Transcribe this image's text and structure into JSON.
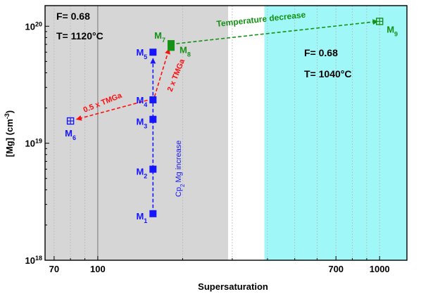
{
  "chart_data": {
    "type": "scatter",
    "xlabel": "Supersaturation",
    "ylabel": "[Mg] (cm",
    "ylabel_sup": "-3",
    "ylabel_tail": ")",
    "x_scale": "log",
    "y_scale": "log",
    "xlim": [
      65,
      1250
    ],
    "ylim": [
      1e+18,
      1.5e+20
    ],
    "x_ticks": [
      {
        "value": 70,
        "label": "70"
      },
      {
        "value": 100,
        "label": "100"
      },
      {
        "value": 700,
        "label": "700"
      },
      {
        "value": 1000,
        "label": "1000"
      }
    ],
    "y_ticks": [
      {
        "value": 1e+18,
        "base": "10",
        "exp": "18"
      },
      {
        "value": 1e+19,
        "base": "10",
        "exp": "19"
      },
      {
        "value": 1e+20,
        "base": "10",
        "exp": "20"
      }
    ],
    "regions": [
      {
        "name": "gray-region",
        "x_from": 65,
        "x_to": 290,
        "color": "#d6d6d6"
      },
      {
        "name": "cyan-region",
        "x_from": 390,
        "x_to": 1250,
        "color": "#9ff7f7"
      }
    ],
    "region_labels": [
      {
        "name": "left-region-f",
        "text": "F= 0.68"
      },
      {
        "name": "left-region-t",
        "text": "T= 1120°C"
      },
      {
        "name": "right-region-f",
        "text": "F= 0.68"
      },
      {
        "name": "right-region-t",
        "text": "T= 1040°C"
      }
    ],
    "points": [
      {
        "id": "M1",
        "base": "M",
        "sub": "1",
        "x": 157,
        "y": 2.5e+18,
        "color": "#1515ff",
        "marker": "square"
      },
      {
        "id": "M2",
        "base": "M",
        "sub": "2",
        "x": 157,
        "y": 6e+18,
        "color": "#1515ff",
        "marker": "square"
      },
      {
        "id": "M3",
        "base": "M",
        "sub": "3",
        "x": 157,
        "y": 1.6e+19,
        "color": "#1515ff",
        "marker": "square"
      },
      {
        "id": "M4",
        "base": "M",
        "sub": "4",
        "x": 157,
        "y": 2.35e+19,
        "color": "#1515ff",
        "marker": "square"
      },
      {
        "id": "M5",
        "base": "M",
        "sub": "5",
        "x": 157,
        "y": 6e+19,
        "color": "#1515ff",
        "marker": "square"
      },
      {
        "id": "M6",
        "base": "M",
        "sub": "6",
        "x": 80,
        "y": 1.55e+19,
        "color": "#1515ff",
        "marker": "square-cross"
      },
      {
        "id": "M7",
        "base": "M",
        "sub": "7",
        "x": 182,
        "y": 7.1e+19,
        "color": "#159115",
        "marker": "square"
      },
      {
        "id": "M8",
        "base": "M",
        "sub": "8",
        "x": 182,
        "y": 6.6e+19,
        "color": "#159115",
        "marker": "square"
      },
      {
        "id": "M9",
        "base": "M",
        "sub": "9",
        "x": 1000,
        "y": 1.1e+20,
        "color": "#159115",
        "marker": "square-cross"
      }
    ],
    "arrows": [
      {
        "name": "cp2mg-increase-arrow",
        "from": [
          157,
          2.5e+18
        ],
        "to": [
          157,
          5.3e+19
        ],
        "color": "#1515ff"
      },
      {
        "name": "half-tmga-arrow",
        "from": [
          157,
          2.4e+19
        ],
        "to": [
          84,
          1.6e+19
        ],
        "color": "#ff1010"
      },
      {
        "name": "double-tmga-arrow",
        "from": [
          159,
          2.5e+19
        ],
        "to": [
          179,
          6.4e+19
        ],
        "color": "#ff1010"
      },
      {
        "name": "temperature-decrease-arrow",
        "from": [
          190,
          7.1e+19
        ],
        "to": [
          985,
          1.1e+20
        ],
        "color": "#159115"
      }
    ],
    "annotations": [
      {
        "name": "cp2mg-increase-label",
        "text_a": "Cp",
        "sub": "2",
        "text_b": "Mg increase",
        "color": "#1515ff"
      },
      {
        "name": "half-tmga-label",
        "text": "0.5 x TMGa",
        "color": "#ff1010"
      },
      {
        "name": "double-tmga-label",
        "text": "2 x TMGa",
        "color": "#ff1010"
      },
      {
        "name": "temperature-decrease-label",
        "text": "Temperature decrease",
        "color": "#159115"
      }
    ]
  }
}
